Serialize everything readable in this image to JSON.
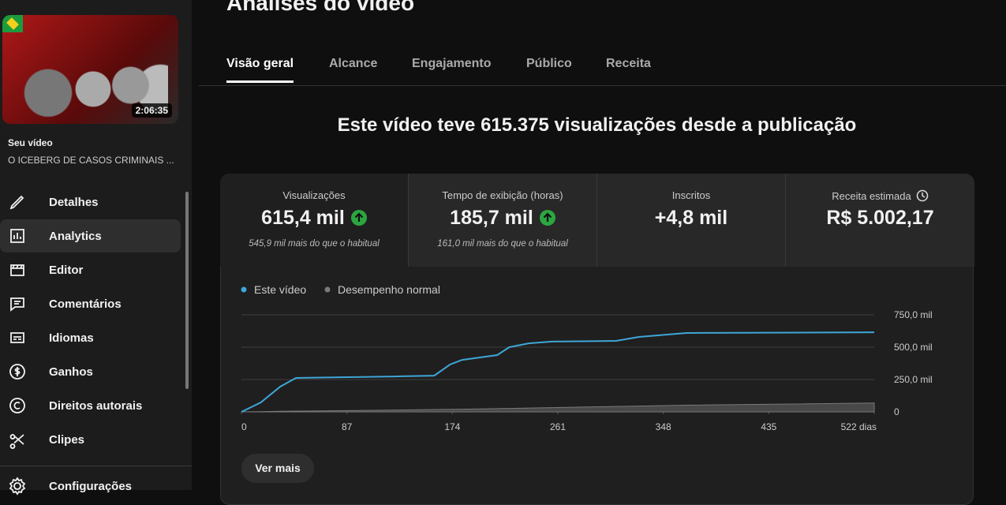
{
  "header": {
    "title": "Análises do vídeo"
  },
  "sidebar": {
    "duration": "2:06:35",
    "label": "Seu vídeo",
    "video_title": "O ICEBERG DE CASOS CRIMINAIS ...",
    "menu": [
      "Detalhes",
      "Analytics",
      "Editor",
      "Comentários",
      "Idiomas",
      "Ganhos",
      "Direitos autorais",
      "Clipes",
      "Configurações"
    ],
    "active_menu": 1
  },
  "tabs": {
    "items": [
      "Visão geral",
      "Alcance",
      "Engajamento",
      "Público",
      "Receita"
    ],
    "active": 0
  },
  "headline": "Este vídeo teve 615.375 visualizações desde a publicação",
  "cards": [
    {
      "label": "Visualizações",
      "value": "615,4 mil",
      "note": "545,9 mil mais do que o habitual",
      "trend": "up"
    },
    {
      "label": "Tempo de exibição (horas)",
      "value": "185,7 mil",
      "note": "161,0 mil mais do que o habitual",
      "trend": "up"
    },
    {
      "label": "Inscritos",
      "value": "+4,8 mil"
    },
    {
      "label": "Receita estimada",
      "value": "R$ 5.002,17"
    }
  ],
  "chart_data": {
    "type": "line",
    "x": [
      0,
      16,
      32,
      45,
      87,
      126,
      159,
      172,
      182,
      211,
      221,
      237,
      256,
      309,
      328,
      367,
      522
    ],
    "series": [
      {
        "name": "Este vídeo",
        "color": "#3ea6d8",
        "values": [
          0,
          73000,
          195000,
          262000,
          268000,
          274000,
          280000,
          366000,
          402000,
          439000,
          500000,
          530000,
          543000,
          549000,
          579000,
          610000,
          615000
        ]
      },
      {
        "name": "Desempenho normal",
        "color": "#7a7a7a",
        "kind": "area",
        "values": [
          0,
          2000,
          4000,
          6000,
          10000,
          14000,
          18000,
          20000,
          21000,
          25000,
          27000,
          30000,
          33000,
          42000,
          45000,
          52000,
          68000
        ]
      }
    ],
    "xlim": [
      0,
      522
    ],
    "xticks": [
      0,
      87,
      174,
      261,
      348,
      435,
      {
        "value": 522,
        "label": "522 dias"
      }
    ],
    "ylim": [
      0,
      750000
    ],
    "yticks": [
      0,
      {
        "value": 250000,
        "label": "250,0 mil"
      },
      {
        "value": 500000,
        "label": "500,0 mil"
      },
      {
        "value": 750000,
        "label": "750,0 mil"
      }
    ],
    "grid": true
  },
  "buttons": {
    "more": "Ver mais"
  }
}
